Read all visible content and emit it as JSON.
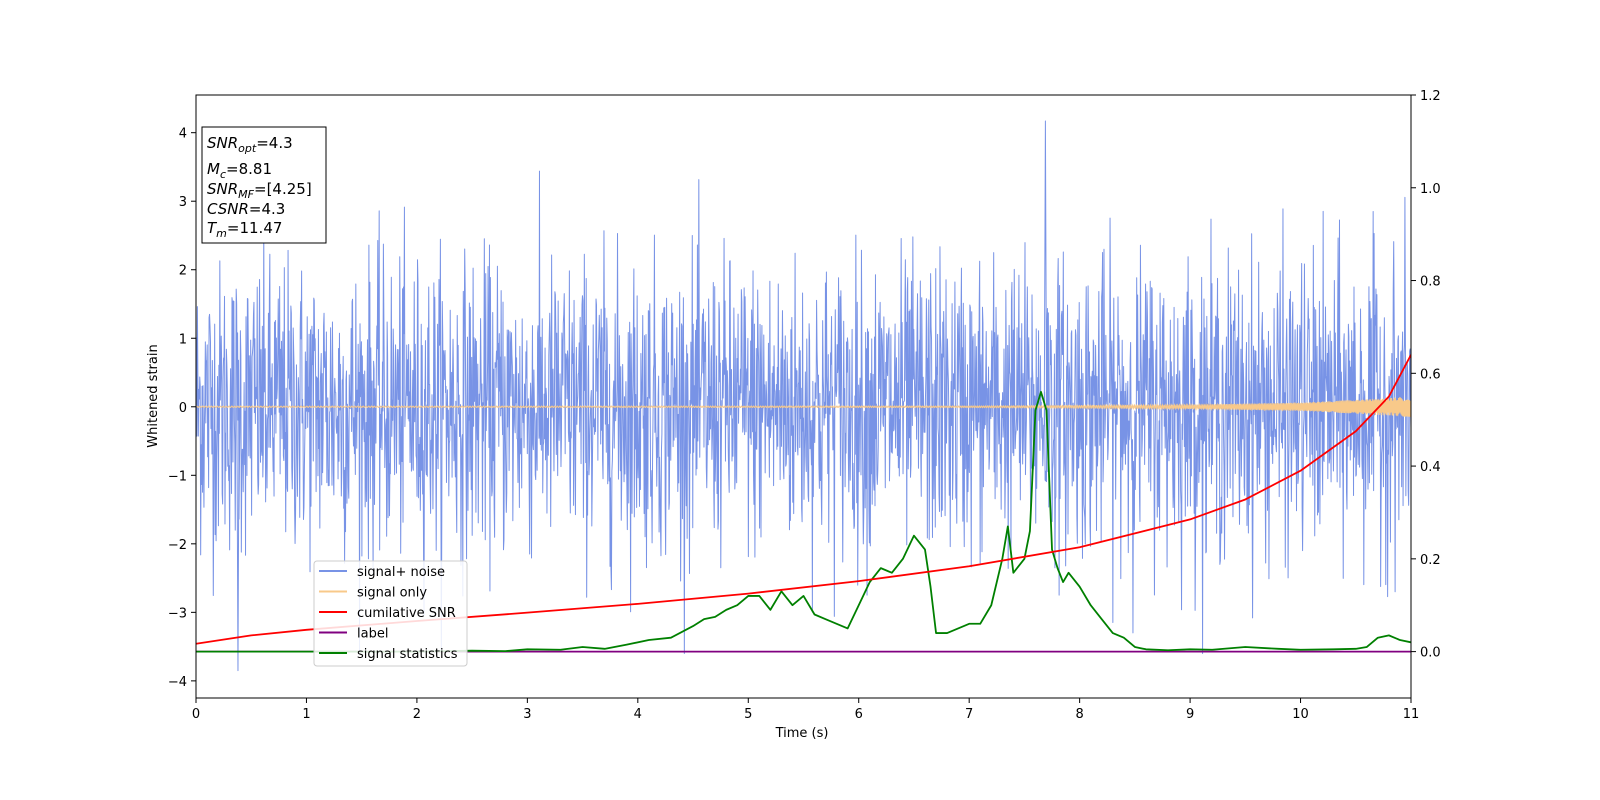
{
  "chart_data": {
    "type": "line",
    "xlabel": "Time (s)",
    "ylabel": "Whitened strain",
    "xlim": [
      0,
      11
    ],
    "ylim_left": [
      -4.25,
      4.55
    ],
    "ylim_right": [
      -0.1,
      1.2
    ],
    "x_ticks": [
      "0",
      "1",
      "2",
      "3",
      "4",
      "5",
      "6",
      "7",
      "8",
      "9",
      "10",
      "11"
    ],
    "y_ticks_left": [
      "−4",
      "−3",
      "−2",
      "−1",
      "0",
      "1",
      "2",
      "3",
      "4"
    ],
    "y_ticks_right": [
      "0.0",
      "0.2",
      "0.4",
      "0.6",
      "0.8",
      "1.0",
      "1.2"
    ],
    "grid": false,
    "legend_position": "lower-left",
    "legend": [
      {
        "label": "signal+ noise",
        "color": "#7893e6"
      },
      {
        "label": "signal only",
        "color": "#f8c98a"
      },
      {
        "label": "cumilative SNR",
        "color": "#ff0000"
      },
      {
        "label": "label",
        "color": "#800080"
      },
      {
        "label": "signal statistics",
        "color": "#008000"
      }
    ],
    "info_box": {
      "snr_opt_base": "SNR",
      "snr_opt_sub": "opt",
      "snr_opt_value": "=4.3",
      "mc_base": "M",
      "mc_sub": "c",
      "mc_value": "=8.81",
      "snr_mf_base": "SNR",
      "snr_mf_sub": "MF",
      "snr_mf_value": "=[4.25]",
      "csnr_base": "CSNR",
      "csnr_value": "=4.3",
      "tm_base": "T",
      "tm_sub": "m",
      "tm_value": "=11.47"
    },
    "series": [
      {
        "name": "signal+ noise",
        "axis": "left",
        "color": "#7893e6",
        "description_envelope": {
          "typical_amplitude": 1.7,
          "peak_max": 4.17,
          "peak_min": -3.85,
          "samples": 2600
        }
      },
      {
        "name": "signal only",
        "axis": "left",
        "color": "#f8c98a",
        "x": [
          0,
          7,
          8,
          9,
          10,
          10.5,
          11
        ],
        "amplitude": [
          0.01,
          0.012,
          0.02,
          0.03,
          0.06,
          0.1,
          0.15
        ]
      },
      {
        "name": "cumilative SNR",
        "axis": "right",
        "color": "#ff0000",
        "x": [
          0,
          0.5,
          1,
          2,
          3,
          4,
          5,
          6,
          7,
          8,
          9,
          9.5,
          10,
          10.5,
          10.8,
          11
        ],
        "y": [
          0.017,
          0.035,
          0.047,
          0.066,
          0.084,
          0.103,
          0.125,
          0.152,
          0.184,
          0.225,
          0.285,
          0.328,
          0.39,
          0.475,
          0.55,
          0.64
        ]
      },
      {
        "name": "label",
        "axis": "right",
        "color": "#800080",
        "x": [
          0,
          11
        ],
        "y": [
          0.0,
          0.0
        ]
      },
      {
        "name": "signal statistics",
        "axis": "right",
        "color": "#008000",
        "x": [
          0,
          1,
          2,
          2.5,
          2.8,
          3,
          3.3,
          3.5,
          3.7,
          3.9,
          4.1,
          4.3,
          4.5,
          4.6,
          4.7,
          4.8,
          4.9,
          5.0,
          5.1,
          5.2,
          5.3,
          5.4,
          5.5,
          5.6,
          5.7,
          5.8,
          5.9,
          6.0,
          6.1,
          6.2,
          6.3,
          6.4,
          6.5,
          6.6,
          6.65,
          6.7,
          6.8,
          6.9,
          7.0,
          7.1,
          7.2,
          7.3,
          7.35,
          7.4,
          7.5,
          7.55,
          7.6,
          7.65,
          7.7,
          7.75,
          7.8,
          7.85,
          7.9,
          8.0,
          8.1,
          8.2,
          8.3,
          8.4,
          8.5,
          8.6,
          8.8,
          9.0,
          9.2,
          9.5,
          9.8,
          10.0,
          10.3,
          10.5,
          10.6,
          10.7,
          10.8,
          10.9,
          11.0
        ],
        "y": [
          0.0,
          0.0,
          0.0,
          0.002,
          0.001,
          0.005,
          0.004,
          0.01,
          0.006,
          0.015,
          0.025,
          0.03,
          0.055,
          0.07,
          0.075,
          0.09,
          0.1,
          0.12,
          0.12,
          0.09,
          0.13,
          0.1,
          0.12,
          0.08,
          0.07,
          0.06,
          0.05,
          0.1,
          0.15,
          0.18,
          0.17,
          0.2,
          0.25,
          0.22,
          0.14,
          0.04,
          0.04,
          0.05,
          0.06,
          0.06,
          0.1,
          0.2,
          0.27,
          0.17,
          0.2,
          0.26,
          0.52,
          0.56,
          0.52,
          0.22,
          0.18,
          0.15,
          0.17,
          0.14,
          0.1,
          0.07,
          0.04,
          0.03,
          0.01,
          0.005,
          0.003,
          0.005,
          0.004,
          0.01,
          0.006,
          0.004,
          0.005,
          0.006,
          0.01,
          0.03,
          0.035,
          0.025,
          0.02
        ]
      }
    ]
  }
}
